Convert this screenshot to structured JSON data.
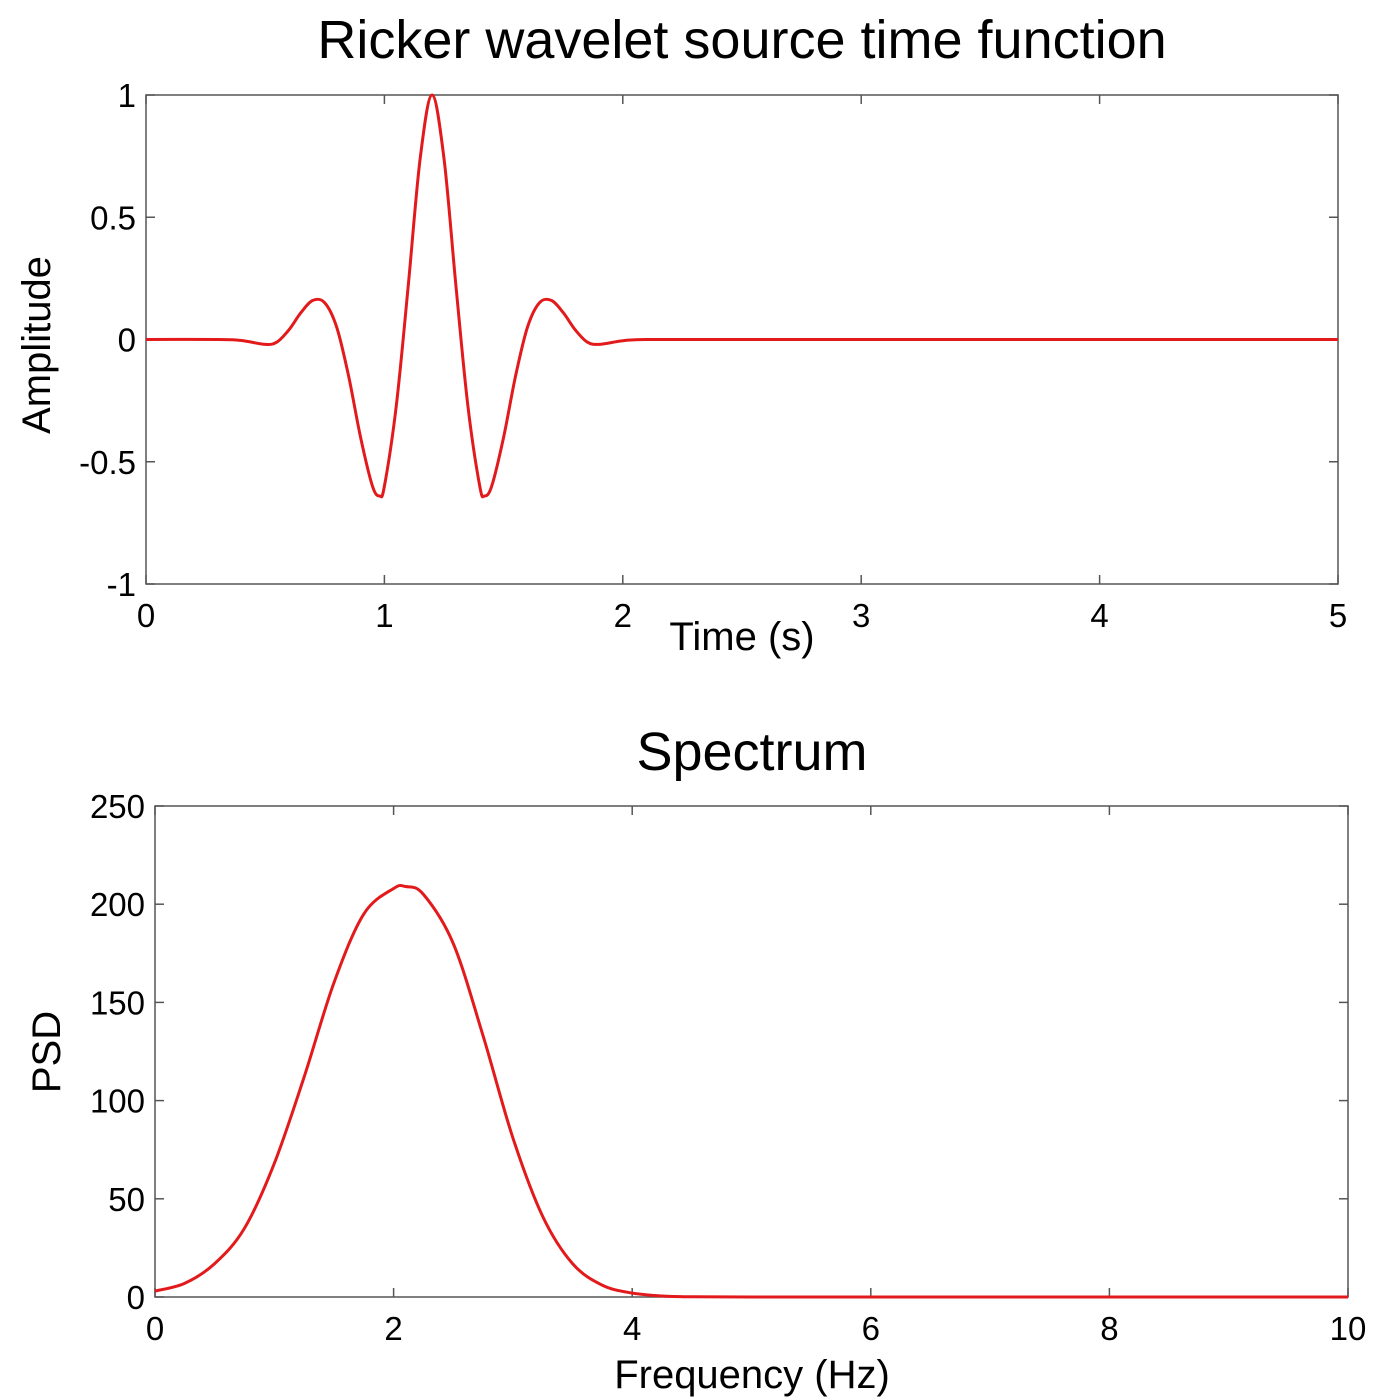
{
  "colors": {
    "curve": "#e31a1c"
  },
  "chart_data": [
    {
      "type": "line",
      "title": "Ricker wavelet source time function",
      "xlabel": "Time (s)",
      "ylabel": "Amplitude",
      "xlim": [
        0,
        5
      ],
      "ylim": [
        -1,
        1
      ],
      "xticks": [
        "0",
        "1",
        "2",
        "3",
        "4",
        "5"
      ],
      "yticks": [
        "-1",
        "-0.5",
        "0",
        "0.5",
        "1"
      ],
      "grid": false,
      "series": [
        {
          "x": [
            0,
            0.3,
            0.4,
            0.5,
            0.55,
            0.6,
            0.65,
            0.7,
            0.75,
            0.8,
            0.85,
            0.9,
            0.95,
            0.98,
            1.0,
            1.05,
            1.1,
            1.15,
            1.2,
            1.25,
            1.3,
            1.35,
            1.4,
            1.42,
            1.45,
            1.5,
            1.55,
            1.6,
            1.65,
            1.7,
            1.75,
            1.8,
            1.85,
            1.9,
            2.0,
            2.1,
            2.5,
            3.0,
            4.0,
            5.0
          ],
          "y": [
            0,
            0,
            -0.004,
            -0.02,
            -0.01,
            0.04,
            0.11,
            0.16,
            0.15,
            0.05,
            -0.15,
            -0.4,
            -0.6,
            -0.64,
            -0.6,
            -0.27,
            0.22,
            0.74,
            1.0,
            0.74,
            0.22,
            -0.27,
            -0.6,
            -0.64,
            -0.6,
            -0.4,
            -0.15,
            0.05,
            0.15,
            0.16,
            0.11,
            0.04,
            -0.01,
            -0.02,
            -0.005,
            0,
            0,
            0,
            0,
            0
          ]
        }
      ]
    },
    {
      "type": "line",
      "title": "Spectrum",
      "xlabel": "Frequency (Hz)",
      "ylabel": "PSD",
      "xlim": [
        0,
        10
      ],
      "ylim": [
        0,
        250
      ],
      "xticks": [
        "0",
        "2",
        "4",
        "6",
        "8",
        "10"
      ],
      "yticks": [
        "0",
        "50",
        "100",
        "150",
        "200",
        "250"
      ],
      "grid": false,
      "series": [
        {
          "x": [
            0,
            0.25,
            0.5,
            0.75,
            1.0,
            1.25,
            1.5,
            1.75,
            2.0,
            2.1,
            2.25,
            2.5,
            2.75,
            3.0,
            3.25,
            3.5,
            3.75,
            4.0,
            4.25,
            4.5,
            5.0,
            6.0,
            8.0,
            10.0
          ],
          "y": [
            3,
            7,
            17,
            35,
            68,
            112,
            160,
            195,
            208,
            209,
            205,
            180,
            133,
            81,
            41,
            17,
            6,
            2,
            0.5,
            0.1,
            0,
            0,
            0,
            0
          ]
        }
      ]
    }
  ]
}
